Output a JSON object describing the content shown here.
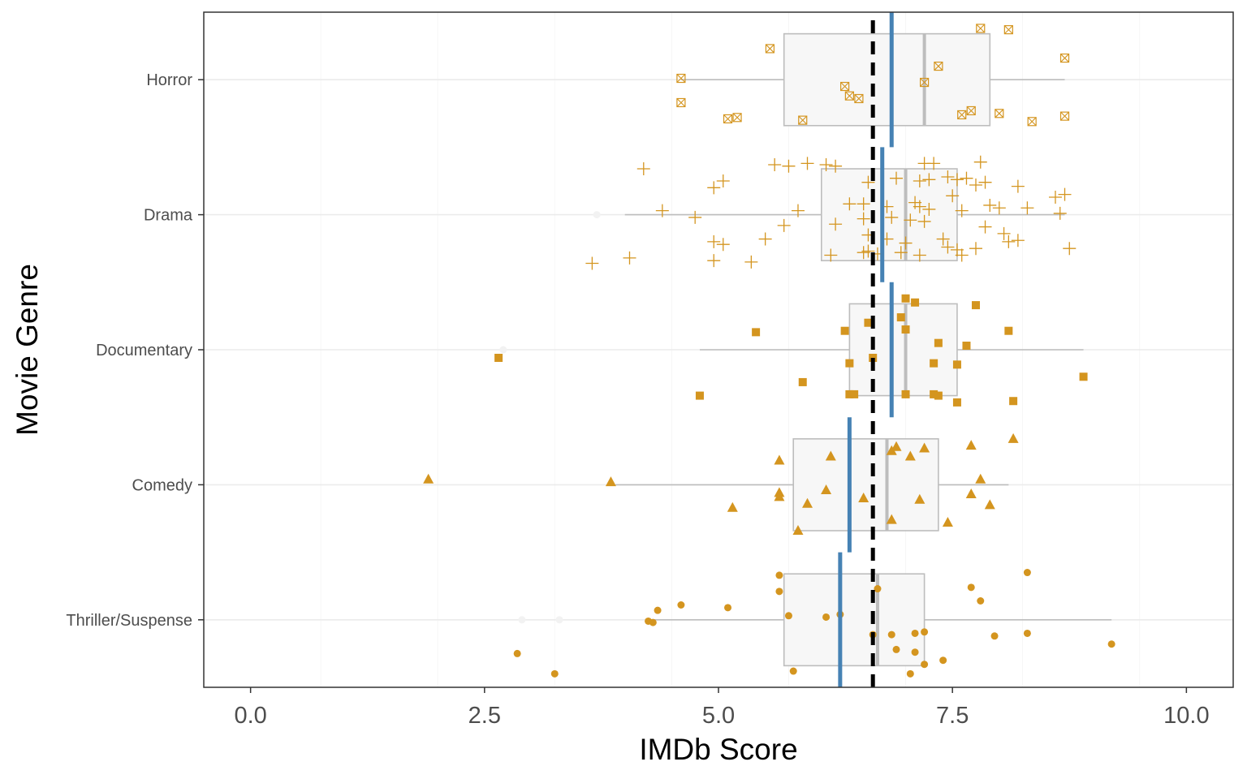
{
  "chart_data": {
    "type": "boxplot",
    "xlabel": "IMDb Score",
    "ylabel": "Movie Genre",
    "xlim": [
      -0.5,
      10.5
    ],
    "x_ticks": [
      "0.0",
      "2.5",
      "5.0",
      "7.5",
      "10.0"
    ],
    "x_tick_values": [
      0,
      2.5,
      5,
      7.5,
      10
    ],
    "grid": true,
    "overall_mean": 6.65,
    "colors": {
      "points": "#d4951f",
      "mean_line": "#4682b4",
      "box_fill": "#f7f7f7",
      "box_stroke": "#bdbdbd",
      "overall_mean_line": "#000000"
    },
    "categories": [
      "Horror",
      "Drama",
      "Documentary",
      "Comedy",
      "Thriller/Suspense"
    ],
    "groups": [
      {
        "name": "Horror",
        "marker": "square-x",
        "box": {
          "whisker_low": 4.6,
          "q1": 5.7,
          "median": 7.2,
          "q3": 7.9,
          "whisker_high": 8.7
        },
        "mean": 6.85,
        "outliers": [],
        "points": [
          [
            7.8,
            0.38
          ],
          [
            8.1,
            0.37
          ],
          [
            5.55,
            0.23
          ],
          [
            8.7,
            0.16
          ],
          [
            7.35,
            0.1
          ],
          [
            4.6,
            0.01
          ],
          [
            7.2,
            -0.02
          ],
          [
            6.35,
            -0.05
          ],
          [
            6.4,
            -0.12
          ],
          [
            6.5,
            -0.14
          ],
          [
            4.6,
            -0.17
          ],
          [
            7.7,
            -0.23
          ],
          [
            7.6,
            -0.26
          ],
          [
            8.0,
            -0.25
          ],
          [
            5.1,
            -0.29
          ],
          [
            5.2,
            -0.28
          ],
          [
            5.9,
            -0.3
          ],
          [
            8.35,
            -0.31
          ],
          [
            8.7,
            -0.27
          ]
        ]
      },
      {
        "name": "Drama",
        "marker": "plus",
        "box": {
          "whisker_low": 4.0,
          "q1": 6.1,
          "median": 7.0,
          "q3": 7.55,
          "whisker_high": 8.7
        },
        "mean": 6.75,
        "outliers": [
          3.7
        ],
        "points": [
          [
            4.2,
            0.34
          ],
          [
            5.6,
            0.37
          ],
          [
            5.75,
            0.36
          ],
          [
            5.95,
            0.38
          ],
          [
            6.15,
            0.37
          ],
          [
            6.25,
            0.36
          ],
          [
            7.2,
            0.38
          ],
          [
            7.3,
            0.38
          ],
          [
            7.8,
            0.39
          ],
          [
            4.95,
            0.2
          ],
          [
            5.05,
            0.25
          ],
          [
            6.6,
            0.24
          ],
          [
            6.9,
            0.27
          ],
          [
            7.15,
            0.25
          ],
          [
            7.25,
            0.26
          ],
          [
            7.45,
            0.28
          ],
          [
            7.55,
            0.26
          ],
          [
            7.65,
            0.27
          ],
          [
            7.75,
            0.22
          ],
          [
            7.85,
            0.24
          ],
          [
            8.2,
            0.21
          ],
          [
            8.6,
            0.13
          ],
          [
            8.7,
            0.15
          ],
          [
            4.4,
            0.03
          ],
          [
            5.85,
            0.03
          ],
          [
            6.4,
            0.08
          ],
          [
            6.55,
            0.08
          ],
          [
            6.8,
            0.06
          ],
          [
            7.1,
            0.09
          ],
          [
            7.15,
            0.06
          ],
          [
            7.25,
            0.04
          ],
          [
            7.5,
            0.14
          ],
          [
            7.6,
            0.03
          ],
          [
            7.9,
            0.07
          ],
          [
            8.0,
            0.05
          ],
          [
            8.3,
            0.05
          ],
          [
            8.65,
            0.01
          ],
          [
            4.75,
            -0.02
          ],
          [
            6.55,
            -0.03
          ],
          [
            6.85,
            -0.02
          ],
          [
            7.05,
            -0.04
          ],
          [
            7.2,
            -0.05
          ],
          [
            5.7,
            -0.08
          ],
          [
            6.25,
            -0.07
          ],
          [
            6.6,
            -0.15
          ],
          [
            7.4,
            -0.18
          ],
          [
            7.85,
            -0.09
          ],
          [
            8.05,
            -0.14
          ],
          [
            4.95,
            -0.2
          ],
          [
            5.05,
            -0.22
          ],
          [
            5.5,
            -0.18
          ],
          [
            6.8,
            -0.18
          ],
          [
            7.0,
            -0.21
          ],
          [
            6.95,
            -0.28
          ],
          [
            7.15,
            -0.3
          ],
          [
            7.45,
            -0.24
          ],
          [
            7.55,
            -0.26
          ],
          [
            7.6,
            -0.3
          ],
          [
            7.75,
            -0.25
          ],
          [
            8.1,
            -0.2
          ],
          [
            8.2,
            -0.19
          ],
          [
            6.2,
            -0.3
          ],
          [
            6.55,
            -0.28
          ],
          [
            6.6,
            -0.27
          ],
          [
            6.7,
            -0.29
          ],
          [
            4.05,
            -0.32
          ],
          [
            4.95,
            -0.34
          ],
          [
            5.35,
            -0.35
          ],
          [
            3.65,
            -0.36
          ],
          [
            8.75,
            -0.25
          ]
        ]
      },
      {
        "name": "Documentary",
        "marker": "square",
        "box": {
          "whisker_low": 4.8,
          "q1": 6.4,
          "median": 7.0,
          "q3": 7.55,
          "whisker_high": 8.9
        },
        "mean": 6.85,
        "outliers": [
          2.7
        ],
        "points": [
          [
            7.0,
            0.38
          ],
          [
            7.1,
            0.35
          ],
          [
            7.75,
            0.33
          ],
          [
            6.95,
            0.24
          ],
          [
            6.6,
            0.2
          ],
          [
            5.4,
            0.13
          ],
          [
            6.35,
            0.14
          ],
          [
            7.0,
            0.15
          ],
          [
            8.1,
            0.14
          ],
          [
            7.35,
            0.05
          ],
          [
            7.65,
            0.03
          ],
          [
            2.65,
            -0.06
          ],
          [
            6.65,
            -0.06
          ],
          [
            6.4,
            -0.1
          ],
          [
            7.3,
            -0.1
          ],
          [
            7.55,
            -0.11
          ],
          [
            8.9,
            -0.2
          ],
          [
            5.9,
            -0.24
          ],
          [
            4.8,
            -0.34
          ],
          [
            6.4,
            -0.33
          ],
          [
            6.45,
            -0.33
          ],
          [
            7.0,
            -0.33
          ],
          [
            7.3,
            -0.33
          ],
          [
            7.35,
            -0.34
          ],
          [
            7.55,
            -0.39
          ],
          [
            8.15,
            -0.38
          ]
        ]
      },
      {
        "name": "Comedy",
        "marker": "triangle",
        "box": {
          "whisker_low": 3.9,
          "q1": 5.8,
          "median": 6.8,
          "q3": 7.35,
          "whisker_high": 8.1
        },
        "mean": 6.4,
        "outliers": [],
        "points": [
          [
            8.15,
            0.34
          ],
          [
            7.7,
            0.29
          ],
          [
            6.9,
            0.28
          ],
          [
            7.2,
            0.27
          ],
          [
            6.85,
            0.25
          ],
          [
            6.2,
            0.21
          ],
          [
            5.65,
            0.18
          ],
          [
            7.05,
            0.21
          ],
          [
            1.9,
            0.04
          ],
          [
            3.85,
            0.02
          ],
          [
            7.8,
            0.04
          ],
          [
            5.65,
            -0.06
          ],
          [
            6.15,
            -0.04
          ],
          [
            6.55,
            -0.1
          ],
          [
            7.7,
            -0.07
          ],
          [
            5.65,
            -0.09
          ],
          [
            7.15,
            -0.11
          ],
          [
            5.95,
            -0.14
          ],
          [
            7.9,
            -0.15
          ],
          [
            5.15,
            -0.17
          ],
          [
            6.85,
            -0.26
          ],
          [
            7.45,
            -0.28
          ],
          [
            5.85,
            -0.34
          ]
        ]
      },
      {
        "name": "Thriller/Suspense",
        "marker": "circle",
        "box": {
          "whisker_low": 4.25,
          "q1": 5.7,
          "median": 6.7,
          "q3": 7.2,
          "whisker_high": 9.2
        },
        "mean": 6.3,
        "outliers": [
          2.9,
          3.3
        ],
        "points": [
          [
            8.3,
            0.35
          ],
          [
            5.65,
            0.33
          ],
          [
            7.7,
            0.24
          ],
          [
            6.7,
            0.23
          ],
          [
            5.65,
            0.21
          ],
          [
            7.8,
            0.14
          ],
          [
            4.6,
            0.11
          ],
          [
            5.1,
            0.09
          ],
          [
            4.35,
            0.07
          ],
          [
            5.75,
            0.03
          ],
          [
            6.15,
            0.02
          ],
          [
            6.3,
            0.04
          ],
          [
            4.25,
            -0.01
          ],
          [
            4.3,
            -0.02
          ],
          [
            6.65,
            -0.11
          ],
          [
            7.1,
            -0.1
          ],
          [
            7.2,
            -0.09
          ],
          [
            6.85,
            -0.11
          ],
          [
            7.95,
            -0.12
          ],
          [
            8.3,
            -0.1
          ],
          [
            9.2,
            -0.18
          ],
          [
            6.9,
            -0.22
          ],
          [
            7.1,
            -0.24
          ],
          [
            7.2,
            -0.33
          ],
          [
            7.4,
            -0.3
          ],
          [
            2.85,
            -0.25
          ],
          [
            3.25,
            -0.4
          ],
          [
            5.8,
            -0.38
          ],
          [
            7.05,
            -0.4
          ]
        ]
      }
    ]
  }
}
